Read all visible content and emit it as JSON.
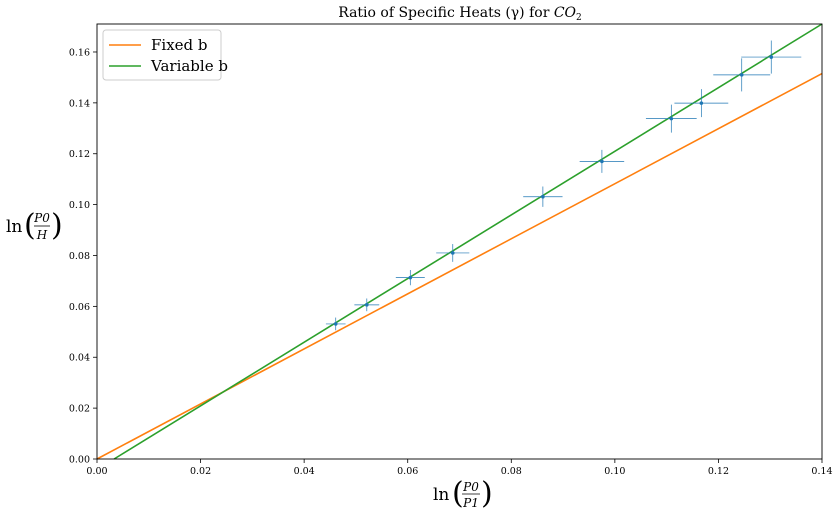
{
  "chart_data": {
    "type": "scatter",
    "title_main": "Ratio of Specific Heats (γ) for ",
    "title_sym": "CO",
    "title_sub": "2",
    "xlabel": {
      "prefix": "ln",
      "num": "P0",
      "den": "P1"
    },
    "ylabel": {
      "prefix": "ln",
      "num": "P0",
      "den": "H"
    },
    "xlim": [
      0.0,
      0.14
    ],
    "ylim": [
      0.0,
      0.171
    ],
    "xticks": [
      0.0,
      0.02,
      0.04,
      0.06,
      0.08,
      0.1,
      0.12,
      0.14
    ],
    "xtick_labels": [
      "0.00",
      "0.02",
      "0.04",
      "0.06",
      "0.08",
      "0.10",
      "0.12",
      "0.14"
    ],
    "yticks": [
      0.0,
      0.02,
      0.04,
      0.06,
      0.08,
      0.1,
      0.12,
      0.14,
      0.16
    ],
    "ytick_labels": [
      "0.00",
      "0.02",
      "0.04",
      "0.06",
      "0.08",
      "0.10",
      "0.12",
      "0.14",
      "0.16"
    ],
    "grid": false,
    "legend_position": "upper-left",
    "points": [
      {
        "x": 0.0461,
        "y": 0.0531,
        "xerr": 0.0019,
        "yerr": 0.0025
      },
      {
        "x": 0.0521,
        "y": 0.0606,
        "xerr": 0.0024,
        "yerr": 0.0025
      },
      {
        "x": 0.0605,
        "y": 0.0713,
        "xerr": 0.0028,
        "yerr": 0.003
      },
      {
        "x": 0.0687,
        "y": 0.081,
        "xerr": 0.0032,
        "yerr": 0.0035
      },
      {
        "x": 0.0861,
        "y": 0.1031,
        "xerr": 0.0038,
        "yerr": 0.004
      },
      {
        "x": 0.0975,
        "y": 0.117,
        "xerr": 0.0043,
        "yerr": 0.0045
      },
      {
        "x": 0.1109,
        "y": 0.1338,
        "xerr": 0.0049,
        "yerr": 0.0055
      },
      {
        "x": 0.1167,
        "y": 0.1399,
        "xerr": 0.0052,
        "yerr": 0.0055
      },
      {
        "x": 0.1245,
        "y": 0.151,
        "xerr": 0.0055,
        "yerr": 0.0065
      },
      {
        "x": 0.1302,
        "y": 0.158,
        "xerr": 0.0058,
        "yerr": 0.0065
      }
    ],
    "series": [
      {
        "name": "Fixed b",
        "color": "#ff7f0e",
        "x": [
          0.0,
          0.14
        ],
        "y": [
          0.0,
          0.1515
        ]
      },
      {
        "name": "Variable b",
        "color": "#2ca02c",
        "x": [
          0.0033,
          0.14
        ],
        "y": [
          0.0,
          0.171
        ]
      }
    ],
    "point_color": "#1f77b4",
    "errorbar_color": "#1f77b4"
  }
}
